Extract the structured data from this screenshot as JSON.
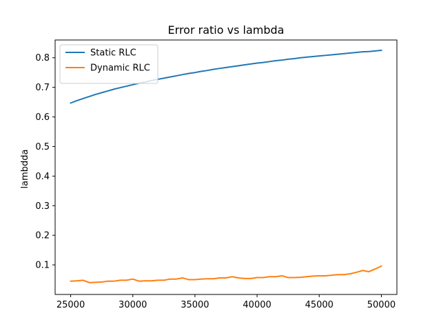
{
  "chart_data": {
    "type": "line",
    "title": "Error ratio vs lambda",
    "xlabel": "",
    "ylabel": "lambdda",
    "xlim": [
      23750,
      51250
    ],
    "ylim": [
      0.0,
      0.86
    ],
    "xticks": [
      25000,
      30000,
      35000,
      40000,
      45000,
      50000
    ],
    "yticks": [
      0.1,
      0.2,
      0.3,
      0.4,
      0.5,
      0.6,
      0.7,
      0.8
    ],
    "grid": false,
    "legend_position": "upper-left",
    "x": [
      25000,
      25500,
      26000,
      26500,
      27000,
      27500,
      28000,
      28500,
      29000,
      29500,
      30000,
      30500,
      31000,
      31500,
      32000,
      32500,
      33000,
      33500,
      34000,
      34500,
      35000,
      35500,
      36000,
      36500,
      37000,
      37500,
      38000,
      38500,
      39000,
      39500,
      40000,
      40500,
      41000,
      41500,
      42000,
      42500,
      43000,
      43500,
      44000,
      44500,
      45000,
      45500,
      46000,
      46500,
      47000,
      47500,
      48000,
      48500,
      49000,
      49500,
      50000
    ],
    "series": [
      {
        "name": "Static RLC",
        "color": "#1f77b4",
        "values": [
          0.647,
          0.655,
          0.662,
          0.669,
          0.676,
          0.682,
          0.688,
          0.694,
          0.699,
          0.704,
          0.709,
          0.714,
          0.718,
          0.723,
          0.727,
          0.731,
          0.735,
          0.739,
          0.743,
          0.747,
          0.75,
          0.754,
          0.757,
          0.761,
          0.764,
          0.767,
          0.77,
          0.773,
          0.776,
          0.779,
          0.782,
          0.784,
          0.787,
          0.79,
          0.792,
          0.795,
          0.797,
          0.8,
          0.802,
          0.804,
          0.806,
          0.808,
          0.81,
          0.812,
          0.814,
          0.816,
          0.818,
          0.82,
          0.821,
          0.823,
          0.825
        ]
      },
      {
        "name": "Dynamic RLC",
        "color": "#ff7f0e",
        "values": [
          0.045,
          0.046,
          0.048,
          0.04,
          0.041,
          0.042,
          0.045,
          0.045,
          0.048,
          0.048,
          0.052,
          0.045,
          0.046,
          0.046,
          0.048,
          0.048,
          0.052,
          0.052,
          0.056,
          0.05,
          0.05,
          0.052,
          0.053,
          0.053,
          0.056,
          0.056,
          0.06,
          0.056,
          0.054,
          0.054,
          0.057,
          0.057,
          0.06,
          0.06,
          0.063,
          0.057,
          0.057,
          0.058,
          0.06,
          0.062,
          0.063,
          0.063,
          0.065,
          0.067,
          0.067,
          0.07,
          0.075,
          0.081,
          0.077,
          0.086,
          0.096
        ]
      }
    ]
  }
}
